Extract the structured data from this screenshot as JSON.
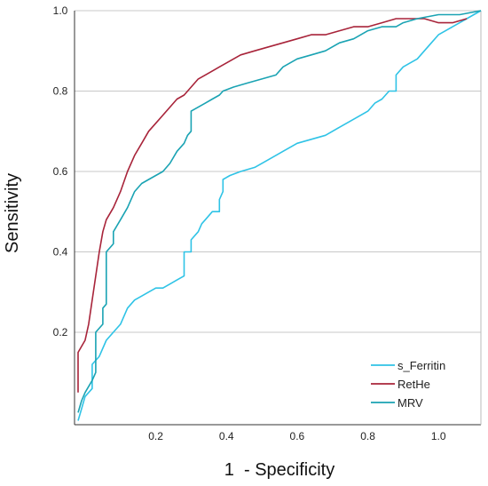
{
  "chart_data": {
    "type": "line",
    "title": "",
    "xlabel": "1  - Specificity",
    "ylabel": "Sensitivity",
    "xlim": [
      -0.03,
      1.12
    ],
    "ylim": [
      -0.03,
      1.0
    ],
    "x_ticks": [
      {
        "value": 0.2,
        "label": "0.2"
      },
      {
        "value": 0.4,
        "label": "0.4"
      },
      {
        "value": 0.6,
        "label": "0.6"
      },
      {
        "value": 0.8,
        "label": "0.8"
      },
      {
        "value": 1.0,
        "label": "1.0"
      }
    ],
    "y_ticks": [
      {
        "value": 0.2,
        "label": "0.2"
      },
      {
        "value": 0.4,
        "label": "0.4"
      },
      {
        "value": 0.6,
        "label": "0.6"
      },
      {
        "value": 0.8,
        "label": "0.8"
      },
      {
        "value": 1.0,
        "label": "1.0"
      }
    ],
    "grid": "horizontal",
    "legend_position": "bottom-right",
    "series": [
      {
        "name": "s_Ferritin",
        "color": "#2fc3e6",
        "points": [
          [
            -0.02,
            -0.02
          ],
          [
            -0.01,
            0.01
          ],
          [
            0.0,
            0.04
          ],
          [
            0.02,
            0.06
          ],
          [
            0.02,
            0.12
          ],
          [
            0.04,
            0.14
          ],
          [
            0.06,
            0.18
          ],
          [
            0.08,
            0.2
          ],
          [
            0.1,
            0.22
          ],
          [
            0.12,
            0.26
          ],
          [
            0.14,
            0.28
          ],
          [
            0.16,
            0.29
          ],
          [
            0.18,
            0.3
          ],
          [
            0.2,
            0.31
          ],
          [
            0.22,
            0.31
          ],
          [
            0.24,
            0.32
          ],
          [
            0.26,
            0.33
          ],
          [
            0.28,
            0.34
          ],
          [
            0.28,
            0.4
          ],
          [
            0.3,
            0.4
          ],
          [
            0.3,
            0.43
          ],
          [
            0.32,
            0.45
          ],
          [
            0.33,
            0.47
          ],
          [
            0.34,
            0.48
          ],
          [
            0.36,
            0.5
          ],
          [
            0.38,
            0.5
          ],
          [
            0.38,
            0.53
          ],
          [
            0.39,
            0.55
          ],
          [
            0.39,
            0.58
          ],
          [
            0.41,
            0.59
          ],
          [
            0.44,
            0.6
          ],
          [
            0.48,
            0.61
          ],
          [
            0.52,
            0.63
          ],
          [
            0.56,
            0.65
          ],
          [
            0.6,
            0.67
          ],
          [
            0.64,
            0.68
          ],
          [
            0.68,
            0.69
          ],
          [
            0.72,
            0.71
          ],
          [
            0.76,
            0.73
          ],
          [
            0.8,
            0.75
          ],
          [
            0.82,
            0.77
          ],
          [
            0.84,
            0.78
          ],
          [
            0.86,
            0.8
          ],
          [
            0.88,
            0.8
          ],
          [
            0.88,
            0.84
          ],
          [
            0.9,
            0.86
          ],
          [
            0.92,
            0.87
          ],
          [
            0.94,
            0.88
          ],
          [
            0.96,
            0.9
          ],
          [
            0.98,
            0.92
          ],
          [
            1.0,
            0.94
          ],
          [
            1.02,
            0.95
          ],
          [
            1.04,
            0.96
          ],
          [
            1.06,
            0.97
          ],
          [
            1.08,
            0.98
          ],
          [
            1.1,
            0.99
          ],
          [
            1.12,
            1.0
          ]
        ]
      },
      {
        "name": "RetHe",
        "color": "#a8243a",
        "points": [
          [
            -0.02,
            0.05
          ],
          [
            -0.02,
            0.15
          ],
          [
            0.0,
            0.18
          ],
          [
            0.01,
            0.22
          ],
          [
            0.02,
            0.28
          ],
          [
            0.03,
            0.34
          ],
          [
            0.04,
            0.4
          ],
          [
            0.05,
            0.45
          ],
          [
            0.06,
            0.48
          ],
          [
            0.08,
            0.51
          ],
          [
            0.1,
            0.55
          ],
          [
            0.12,
            0.6
          ],
          [
            0.14,
            0.64
          ],
          [
            0.16,
            0.67
          ],
          [
            0.18,
            0.7
          ],
          [
            0.2,
            0.72
          ],
          [
            0.22,
            0.74
          ],
          [
            0.24,
            0.76
          ],
          [
            0.26,
            0.78
          ],
          [
            0.28,
            0.79
          ],
          [
            0.3,
            0.81
          ],
          [
            0.32,
            0.83
          ],
          [
            0.34,
            0.84
          ],
          [
            0.36,
            0.85
          ],
          [
            0.38,
            0.86
          ],
          [
            0.4,
            0.87
          ],
          [
            0.44,
            0.89
          ],
          [
            0.48,
            0.9
          ],
          [
            0.52,
            0.91
          ],
          [
            0.56,
            0.92
          ],
          [
            0.6,
            0.93
          ],
          [
            0.64,
            0.94
          ],
          [
            0.68,
            0.94
          ],
          [
            0.72,
            0.95
          ],
          [
            0.76,
            0.96
          ],
          [
            0.8,
            0.96
          ],
          [
            0.84,
            0.97
          ],
          [
            0.88,
            0.98
          ],
          [
            0.92,
            0.98
          ],
          [
            0.96,
            0.98
          ],
          [
            1.0,
            0.97
          ],
          [
            1.04,
            0.97
          ],
          [
            1.08,
            0.98
          ]
        ]
      },
      {
        "name": "MRV",
        "color": "#1aa3b3",
        "points": [
          [
            -0.02,
            0.0
          ],
          [
            -0.01,
            0.03
          ],
          [
            0.0,
            0.05
          ],
          [
            0.02,
            0.08
          ],
          [
            0.03,
            0.1
          ],
          [
            0.03,
            0.2
          ],
          [
            0.05,
            0.22
          ],
          [
            0.05,
            0.26
          ],
          [
            0.06,
            0.27
          ],
          [
            0.06,
            0.4
          ],
          [
            0.08,
            0.42
          ],
          [
            0.08,
            0.45
          ],
          [
            0.1,
            0.48
          ],
          [
            0.12,
            0.51
          ],
          [
            0.14,
            0.55
          ],
          [
            0.16,
            0.57
          ],
          [
            0.18,
            0.58
          ],
          [
            0.2,
            0.59
          ],
          [
            0.22,
            0.6
          ],
          [
            0.24,
            0.62
          ],
          [
            0.26,
            0.65
          ],
          [
            0.28,
            0.67
          ],
          [
            0.29,
            0.69
          ],
          [
            0.3,
            0.7
          ],
          [
            0.3,
            0.75
          ],
          [
            0.32,
            0.76
          ],
          [
            0.34,
            0.77
          ],
          [
            0.36,
            0.78
          ],
          [
            0.38,
            0.79
          ],
          [
            0.39,
            0.8
          ],
          [
            0.42,
            0.81
          ],
          [
            0.46,
            0.82
          ],
          [
            0.5,
            0.83
          ],
          [
            0.54,
            0.84
          ],
          [
            0.56,
            0.86
          ],
          [
            0.6,
            0.88
          ],
          [
            0.64,
            0.89
          ],
          [
            0.68,
            0.9
          ],
          [
            0.72,
            0.92
          ],
          [
            0.76,
            0.93
          ],
          [
            0.8,
            0.95
          ],
          [
            0.84,
            0.96
          ],
          [
            0.88,
            0.96
          ],
          [
            0.9,
            0.97
          ],
          [
            0.94,
            0.98
          ],
          [
            1.0,
            0.99
          ],
          [
            1.06,
            0.99
          ],
          [
            1.12,
            1.0
          ]
        ]
      }
    ]
  }
}
